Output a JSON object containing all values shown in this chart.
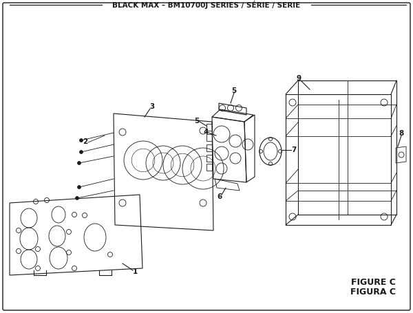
{
  "title": "BLACK MAX – BM10700J SERIES / SÉRIE / SERIE",
  "figure_label": "FIGURE C",
  "figure_label2": "FIGURA C",
  "bg_color": "#ffffff",
  "line_color": "#1a1a1a",
  "title_fontsize": 7.5,
  "label_fontsize": 7.5,
  "figure_label_fontsize": 9
}
